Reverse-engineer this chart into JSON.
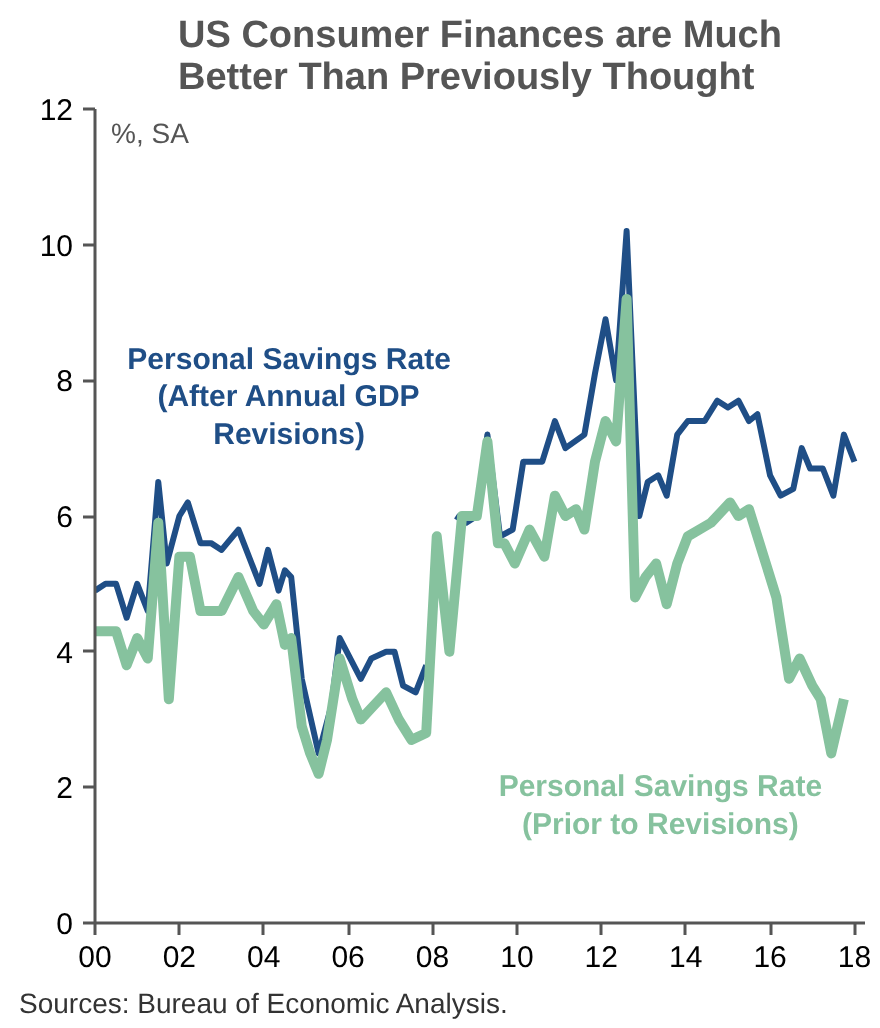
{
  "chart_data": {
    "type": "line",
    "title": "US Consumer Finances are Much\nBetter Than Previously Thought",
    "ylabel": "%, SA",
    "annotations": [
      "Sources: Bureau of Economic Analysis."
    ],
    "xlim": [
      2000,
      2018.25
    ],
    "ylim": [
      0,
      12
    ],
    "xticks": [
      {
        "value": 2000,
        "label": "00"
      },
      {
        "value": 2002,
        "label": "02"
      },
      {
        "value": 2004,
        "label": "04"
      },
      {
        "value": 2006,
        "label": "06"
      },
      {
        "value": 2008,
        "label": "08"
      },
      {
        "value": 2010,
        "label": "10"
      },
      {
        "value": 2012,
        "label": "12"
      },
      {
        "value": 2014,
        "label": "14"
      },
      {
        "value": 2016,
        "label": "16"
      },
      {
        "value": 2018,
        "label": "18"
      }
    ],
    "yticks": [
      0,
      2,
      4,
      6,
      8,
      10,
      12
    ],
    "grid": false,
    "marker": "none",
    "line_style": "solid",
    "series": [
      {
        "name": "Personal Savings Rate\n(After Annual GDP\nRevisions)",
        "color": "#1f4e86",
        "x": [
          2000.0,
          2000.25,
          2000.5,
          2000.75,
          2001.0,
          2001.25,
          2001.5,
          2001.7,
          2002.0,
          2002.2,
          2002.5,
          2002.75,
          2003.0,
          2003.4,
          2003.9,
          2004.1,
          2004.35,
          2004.5,
          2004.65,
          2004.9,
          2005.3,
          2005.6,
          2005.8,
          2006.3,
          2006.55,
          2006.9,
          2007.1,
          2007.3,
          2007.6,
          2007.85,
          2008.2,
          2008.55,
          2008.8,
          2009.05,
          2009.3,
          2009.6,
          2009.9,
          2010.15,
          2010.6,
          2010.9,
          2011.15,
          2011.6,
          2011.85,
          2012.1,
          2012.35,
          2012.6,
          2012.9,
          2013.1,
          2013.35,
          2013.55,
          2013.8,
          2014.05,
          2014.45,
          2014.75,
          2015.0,
          2015.25,
          2015.5,
          2015.7,
          2016.0,
          2016.25,
          2016.55,
          2016.75,
          2016.95,
          2017.25,
          2017.5,
          2017.75,
          2018.0
        ],
        "values": [
          4.9,
          5.0,
          5.0,
          4.5,
          5.0,
          4.6,
          6.5,
          5.3,
          6.0,
          6.2,
          5.6,
          5.6,
          5.5,
          5.8,
          5.0,
          5.5,
          4.9,
          5.2,
          5.1,
          3.6,
          2.5,
          3.2,
          4.2,
          3.6,
          3.9,
          4.0,
          4.0,
          3.5,
          3.4,
          3.8,
          null,
          6.0,
          5.9,
          6.0,
          7.2,
          5.7,
          5.8,
          6.8,
          6.8,
          7.4,
          7.0,
          7.2,
          8.1,
          8.9,
          8.0,
          10.2,
          6.0,
          6.5,
          6.6,
          6.3,
          7.2,
          7.4,
          7.4,
          7.7,
          7.6,
          7.7,
          7.4,
          7.5,
          6.6,
          6.3,
          6.4,
          7.0,
          6.7,
          6.7,
          6.3,
          7.2,
          6.8
        ]
      },
      {
        "name": "Personal Savings Rate\n(Prior to Revisions)",
        "color": "#86c29e",
        "x": [
          2000.0,
          2000.5,
          2000.75,
          2001.0,
          2001.25,
          2001.5,
          2001.75,
          2002.0,
          2002.25,
          2002.5,
          2003.0,
          2003.4,
          2003.75,
          2004.0,
          2004.3,
          2004.5,
          2004.65,
          2004.9,
          2005.1,
          2005.3,
          2005.5,
          2005.8,
          2006.1,
          2006.3,
          2006.6,
          2006.9,
          2007.2,
          2007.5,
          2007.85,
          2008.1,
          2008.4,
          2008.7,
          2009.05,
          2009.3,
          2009.55,
          2009.7,
          2009.95,
          2010.3,
          2010.65,
          2010.9,
          2011.15,
          2011.4,
          2011.6,
          2011.85,
          2012.1,
          2012.35,
          2012.6,
          2012.8,
          2013.05,
          2013.3,
          2013.55,
          2013.8,
          2014.05,
          2014.6,
          2015.05,
          2015.25,
          2015.5,
          2015.85,
          2016.15,
          2016.45,
          2016.7,
          2017.0,
          2017.2,
          2017.45,
          2017.75
        ],
        "values": [
          4.3,
          4.3,
          3.8,
          4.2,
          3.9,
          5.9,
          3.3,
          5.4,
          5.4,
          4.6,
          4.6,
          5.1,
          4.6,
          4.4,
          4.7,
          4.1,
          4.2,
          2.9,
          2.5,
          2.2,
          2.7,
          3.9,
          3.3,
          3.0,
          3.2,
          3.4,
          3.0,
          2.7,
          2.8,
          5.7,
          4.0,
          6.0,
          6.0,
          7.1,
          5.6,
          5.6,
          5.3,
          5.8,
          5.4,
          6.3,
          6.0,
          6.1,
          5.8,
          6.8,
          7.4,
          7.1,
          9.2,
          4.8,
          5.1,
          5.3,
          4.7,
          5.3,
          5.7,
          5.9,
          6.2,
          6.0,
          6.1,
          5.4,
          4.8,
          3.6,
          3.9,
          3.5,
          3.3,
          2.5,
          3.3
        ]
      }
    ]
  }
}
